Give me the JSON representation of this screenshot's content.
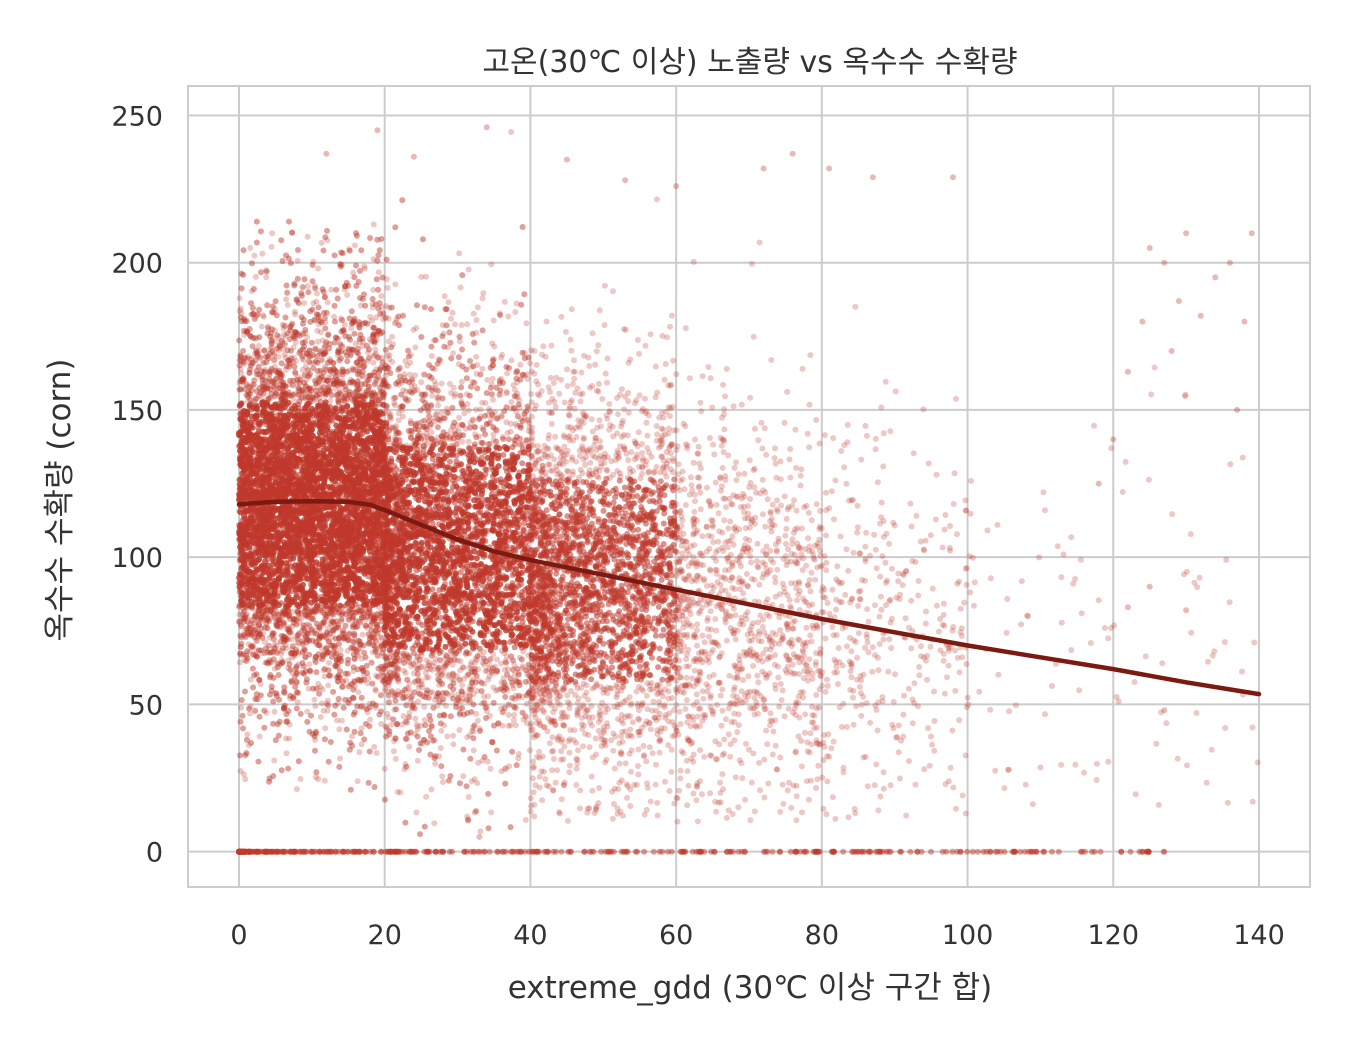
{
  "chart_data": {
    "type": "scatter",
    "title": "고온(30℃ 이상) 노출량 vs 옥수수 수확량",
    "xlabel": "extreme_gdd (30℃ 이상 구간 합)",
    "ylabel": "옥수수 수확량 (corn)",
    "xlim": [
      -7,
      147
    ],
    "ylim": [
      -12,
      260
    ],
    "x_ticks": [
      0,
      20,
      40,
      60,
      80,
      100,
      120,
      140
    ],
    "y_ticks": [
      0,
      50,
      100,
      150,
      200,
      250
    ],
    "x_tick_labels": [
      "0",
      "20",
      "40",
      "60",
      "80",
      "100",
      "120",
      "140"
    ],
    "y_tick_labels": [
      "0",
      "50",
      "100",
      "150",
      "200",
      "250"
    ],
    "grid": true,
    "legend": "none",
    "colors": {
      "points": "#c0392b",
      "trend": "#7b1a10",
      "grid": "#cccccc"
    },
    "series": [
      {
        "kind": "scatter",
        "density_bands": [
          {
            "x_range": [
              0,
              20
            ],
            "y_mean": 118,
            "y_spread": 33,
            "y_range": [
              20,
              215
            ],
            "relative_density": 1.0
          },
          {
            "x_range": [
              20,
              40
            ],
            "y_mean": 103,
            "y_spread": 33,
            "y_range": [
              5,
              245
            ],
            "relative_density": 0.55
          },
          {
            "x_range": [
              40,
              60
            ],
            "y_mean": 92,
            "y_spread": 33,
            "y_range": [
              10,
              230
            ],
            "relative_density": 0.3
          },
          {
            "x_range": [
              60,
              80
            ],
            "y_mean": 82,
            "y_spread": 33,
            "y_range": [
              10,
              235
            ],
            "relative_density": 0.12
          },
          {
            "x_range": [
              80,
              100
            ],
            "y_mean": 76,
            "y_spread": 33,
            "y_range": [
              10,
              230
            ],
            "relative_density": 0.04
          },
          {
            "x_range": [
              100,
              140
            ],
            "y_mean": 66,
            "y_spread": 38,
            "y_range": [
              15,
              210
            ],
            "relative_density": 0.012
          }
        ],
        "zero_yield_x_range": [
          0,
          127
        ],
        "outliers": [
          [
            33,
            5
          ],
          [
            34,
            246
          ],
          [
            19,
            245
          ],
          [
            12,
            237
          ],
          [
            24,
            236
          ],
          [
            45,
            235
          ],
          [
            72,
            232
          ],
          [
            98,
            229
          ],
          [
            87,
            229
          ],
          [
            81,
            232
          ],
          [
            76,
            237
          ],
          [
            53,
            228
          ],
          [
            60,
            226
          ],
          [
            125,
            205
          ],
          [
            127,
            200
          ],
          [
            129,
            187
          ],
          [
            130,
            210
          ],
          [
            132,
            182
          ],
          [
            134,
            195
          ],
          [
            136,
            200
          ],
          [
            138,
            180
          ],
          [
            139,
            210
          ],
          [
            137,
            150
          ],
          [
            128,
            170
          ],
          [
            124,
            180
          ],
          [
            122,
            163
          ],
          [
            120,
            140
          ],
          [
            118,
            125
          ],
          [
            122,
            83
          ],
          [
            125,
            90
          ],
          [
            127,
            48
          ],
          [
            130,
            82
          ],
          [
            127,
            0
          ]
        ]
      },
      {
        "kind": "line",
        "x": [
          0,
          5,
          10,
          15,
          18,
          20,
          25,
          30,
          35,
          40,
          50,
          60,
          70,
          80,
          90,
          100,
          110,
          120,
          130,
          140
        ],
        "y": [
          118,
          118.8,
          119,
          118.8,
          117.8,
          116,
          111,
          106,
          102,
          99,
          94,
          89,
          84,
          79,
          74.5,
          70,
          66,
          62,
          57.5,
          53.5
        ]
      }
    ]
  }
}
